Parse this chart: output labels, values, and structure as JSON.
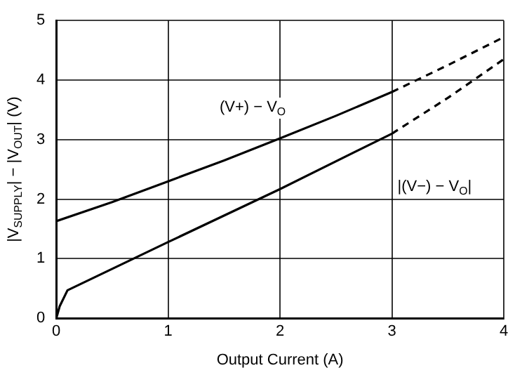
{
  "chart_data": {
    "type": "line",
    "xlabel": "Output Current (A)",
    "ylabel": "|V$_{SUPPLY}$| − |V$_{OUT}$| (V)",
    "xlim": [
      0,
      4
    ],
    "xticks": [
      0,
      1,
      2,
      3,
      4
    ],
    "ylim": [
      0,
      5
    ],
    "yticks": [
      0,
      1,
      2,
      3,
      4,
      5
    ],
    "grid": true,
    "legend": false,
    "marker": "none",
    "series": [
      {
        "name": "(V+) − V$_{O}$",
        "color": "#000000",
        "x": [
          0,
          0.5,
          1,
          1.5,
          2,
          2.5,
          3
        ],
        "values": [
          1.63,
          1.95,
          2.3,
          2.65,
          3.02,
          3.4,
          3.8
        ],
        "line_style": "solid"
      },
      {
        "color": "#000000",
        "x": [
          3,
          3.5,
          4
        ],
        "values": [
          3.8,
          4.25,
          4.72
        ],
        "line_style": "dashed"
      },
      {
        "name": "|(V−) − V$_{O}$|",
        "color": "#000000",
        "x": [
          0,
          0.03,
          0.1,
          1,
          2,
          3
        ],
        "values": [
          0,
          0.2,
          0.47,
          1.28,
          2.17,
          3.1
        ],
        "line_style": "solid"
      },
      {
        "color": "#000000",
        "x": [
          3,
          3.5,
          4
        ],
        "values": [
          3.1,
          3.7,
          4.35
        ],
        "line_style": "dashed"
      }
    ]
  }
}
